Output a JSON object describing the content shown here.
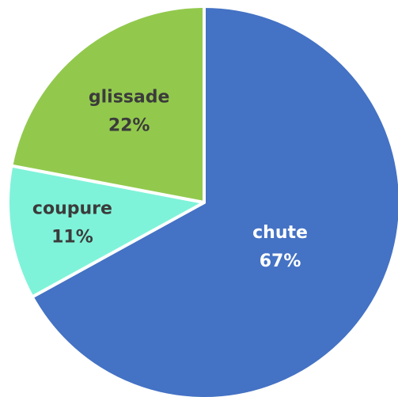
{
  "chart_data": {
    "type": "pie",
    "categories": [
      "chute",
      "coupure",
      "glissade"
    ],
    "values": [
      67,
      11,
      22
    ],
    "value_labels": [
      "67%",
      "11%",
      "22%"
    ],
    "colors": [
      "#4472c4",
      "#7ff3d9",
      "#92c94d"
    ],
    "label_colors": [
      "#ffffff",
      "#3b3b3b",
      "#3b3b3b"
    ]
  }
}
